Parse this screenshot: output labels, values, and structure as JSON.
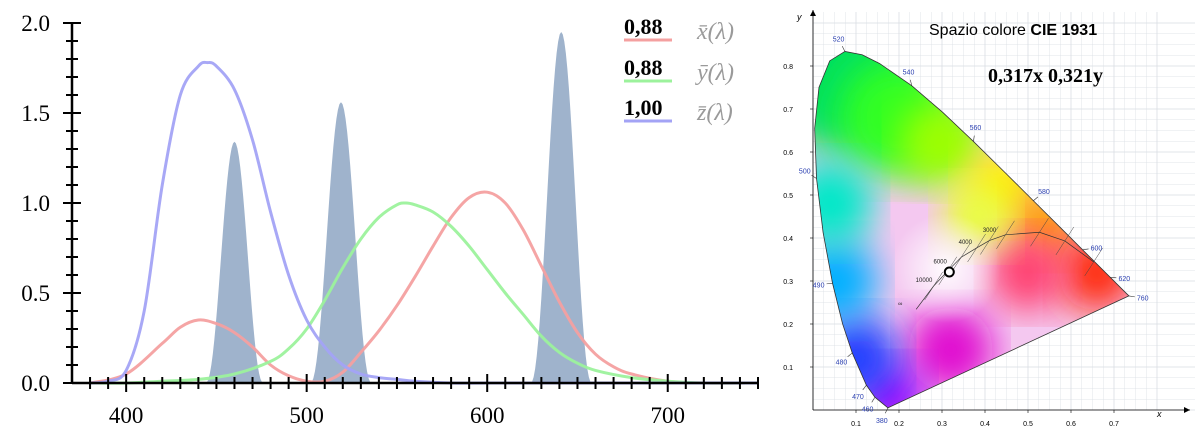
{
  "chart_data": [
    {
      "type": "line",
      "xlim": [
        370,
        750
      ],
      "ylim": [
        0,
        2.0
      ],
      "x_ticks": [
        400,
        500,
        600,
        700
      ],
      "x_tick_labels": [
        "400",
        "500",
        "600",
        "700"
      ],
      "y_ticks": [
        0,
        0.5,
        1.0,
        1.5,
        2.0
      ],
      "y_tick_labels": [
        "0.0",
        "0.5",
        "1.0",
        "1.5",
        "2.0"
      ],
      "grid": false,
      "series": [
        {
          "name": "x̄(λ)",
          "color": "#f4a0a0",
          "legend_value": "0,88",
          "x": [
            380,
            400,
            420,
            430,
            440,
            450,
            460,
            470,
            480,
            490,
            500,
            510,
            520,
            530,
            540,
            550,
            560,
            570,
            580,
            590,
            600,
            610,
            620,
            630,
            640,
            650,
            660,
            670,
            680,
            700,
            720,
            750
          ],
          "values": [
            0.0,
            0.05,
            0.22,
            0.31,
            0.35,
            0.33,
            0.28,
            0.2,
            0.1,
            0.04,
            0.01,
            0.01,
            0.06,
            0.17,
            0.29,
            0.43,
            0.59,
            0.76,
            0.92,
            1.03,
            1.06,
            1.0,
            0.85,
            0.65,
            0.45,
            0.28,
            0.16,
            0.09,
            0.05,
            0.01,
            0.0,
            0.0
          ]
        },
        {
          "name": "ȳ(λ)",
          "color": "#9cf29c",
          "legend_value": "0,88",
          "x": [
            380,
            400,
            420,
            440,
            460,
            480,
            490,
            500,
            510,
            520,
            530,
            540,
            550,
            555,
            560,
            570,
            580,
            590,
            600,
            610,
            620,
            630,
            640,
            650,
            660,
            680,
            700,
            720,
            750
          ],
          "values": [
            0.0,
            0.0,
            0.01,
            0.02,
            0.05,
            0.12,
            0.19,
            0.3,
            0.46,
            0.64,
            0.8,
            0.92,
            0.99,
            1.0,
            0.99,
            0.95,
            0.87,
            0.76,
            0.63,
            0.5,
            0.38,
            0.26,
            0.17,
            0.11,
            0.07,
            0.03,
            0.01,
            0.0,
            0.0
          ]
        },
        {
          "name": "z̄(λ)",
          "color": "#a3a3f5",
          "legend_value": "1,00",
          "x": [
            380,
            390,
            400,
            410,
            420,
            430,
            440,
            445,
            450,
            460,
            470,
            480,
            490,
            500,
            510,
            520,
            530,
            540,
            550,
            560,
            580,
            600,
            650,
            750
          ],
          "values": [
            0.0,
            0.01,
            0.07,
            0.4,
            1.1,
            1.6,
            1.76,
            1.78,
            1.76,
            1.63,
            1.35,
            0.95,
            0.6,
            0.35,
            0.2,
            0.1,
            0.05,
            0.03,
            0.02,
            0.01,
            0.0,
            0.0,
            0.0,
            0.0
          ]
        }
      ],
      "bands": {
        "color": "#9fb3cc",
        "peaks": [
          {
            "center": 460,
            "width": 16,
            "value": 1.34
          },
          {
            "center": 519,
            "width": 17,
            "value": 1.56
          },
          {
            "center": 641,
            "width": 17,
            "value": 1.95
          }
        ]
      }
    },
    {
      "type": "scatter",
      "title": "Spazio colore CIE 1931",
      "title_plain": "Spazio colore ",
      "title_bold": "CIE 1931",
      "coordinate_text": "0,317x 0,321y",
      "xlabel": "x",
      "ylabel": "y",
      "xlim": [
        0,
        0.8
      ],
      "ylim": [
        0,
        0.9
      ],
      "x_ticks": [
        0.1,
        0.2,
        0.3,
        0.4,
        0.5,
        0.6,
        0.7
      ],
      "x_tick_labels": [
        "0.1",
        "0.2",
        "0.3",
        "0.4",
        "0.5",
        "0.6",
        "0.7"
      ],
      "y_ticks": [
        0.1,
        0.2,
        0.3,
        0.4,
        0.5,
        0.6,
        0.7,
        0.8
      ],
      "y_tick_labels": [
        "0.1",
        "0.2",
        "0.3",
        "0.4",
        "0.5",
        "0.6",
        "0.7",
        "0.8"
      ],
      "marked_point": {
        "x": 0.317,
        "y": 0.321
      },
      "locus": [
        {
          "wl": 380,
          "x": 0.1741,
          "y": 0.005
        },
        {
          "wl": 460,
          "x": 0.144,
          "y": 0.0297
        },
        {
          "wl": 470,
          "x": 0.1241,
          "y": 0.0578
        },
        {
          "wl": 480,
          "x": 0.0913,
          "y": 0.1327
        },
        {
          "wl": 485,
          "x": 0.0687,
          "y": 0.2007
        },
        {
          "wl": 490,
          "x": 0.0454,
          "y": 0.295
        },
        {
          "wl": 495,
          "x": 0.0235,
          "y": 0.4127
        },
        {
          "wl": 500,
          "x": 0.0082,
          "y": 0.5384
        },
        {
          "wl": 505,
          "x": 0.0039,
          "y": 0.6548
        },
        {
          "wl": 510,
          "x": 0.0139,
          "y": 0.7502
        },
        {
          "wl": 515,
          "x": 0.0389,
          "y": 0.812
        },
        {
          "wl": 520,
          "x": 0.0743,
          "y": 0.8338
        },
        {
          "wl": 525,
          "x": 0.1142,
          "y": 0.8262
        },
        {
          "wl": 530,
          "x": 0.1547,
          "y": 0.8059
        },
        {
          "wl": 540,
          "x": 0.2296,
          "y": 0.7543
        },
        {
          "wl": 550,
          "x": 0.3016,
          "y": 0.6923
        },
        {
          "wl": 560,
          "x": 0.3731,
          "y": 0.6245
        },
        {
          "wl": 570,
          "x": 0.4441,
          "y": 0.5547
        },
        {
          "wl": 580,
          "x": 0.5125,
          "y": 0.4866
        },
        {
          "wl": 590,
          "x": 0.5752,
          "y": 0.4242
        },
        {
          "wl": 600,
          "x": 0.627,
          "y": 0.3725
        },
        {
          "wl": 620,
          "x": 0.6915,
          "y": 0.3083
        },
        {
          "wl": 640,
          "x": 0.7197,
          "y": 0.2801
        },
        {
          "wl": 760,
          "x": 0.7347,
          "y": 0.2653
        }
      ],
      "wavelength_labels": [
        {
          "text": "380",
          "wl": 380
        },
        {
          "text": "460",
          "wl": 460
        },
        {
          "text": "470",
          "wl": 470
        },
        {
          "text": "480",
          "wl": 480
        },
        {
          "text": "490",
          "wl": 490
        },
        {
          "text": "500",
          "wl": 500
        },
        {
          "text": "520",
          "wl": 520
        },
        {
          "text": "540",
          "wl": 540
        },
        {
          "text": "560",
          "wl": 560
        },
        {
          "text": "580",
          "wl": 580
        },
        {
          "text": "600",
          "wl": 600
        },
        {
          "text": "620",
          "wl": 620
        },
        {
          "text": "760",
          "wl": 760
        }
      ],
      "planckian_locus": [
        {
          "x": 0.2399,
          "y": 0.2341
        },
        {
          "x": 0.2806,
          "y": 0.2883
        },
        {
          "x": 0.3135,
          "y": 0.3237
        },
        {
          "x": 0.3447,
          "y": 0.3553
        },
        {
          "x": 0.3805,
          "y": 0.3768
        },
        {
          "x": 0.4101,
          "y": 0.3941
        },
        {
          "x": 0.4476,
          "y": 0.4074
        },
        {
          "x": 0.5267,
          "y": 0.4133
        },
        {
          "x": 0.5857,
          "y": 0.3931
        },
        {
          "x": 0.6528,
          "y": 0.3444
        }
      ],
      "temperature_labels": [
        {
          "text": "∞",
          "x": 0.2399,
          "y": 0.2341
        },
        {
          "text": "10000",
          "x": 0.2806,
          "y": 0.2883
        },
        {
          "text": "6000",
          "x": 0.3221,
          "y": 0.3318
        },
        {
          "text": "4000",
          "x": 0.3805,
          "y": 0.3768
        },
        {
          "text": "3000",
          "x": 0.4368,
          "y": 0.4041
        }
      ]
    }
  ]
}
